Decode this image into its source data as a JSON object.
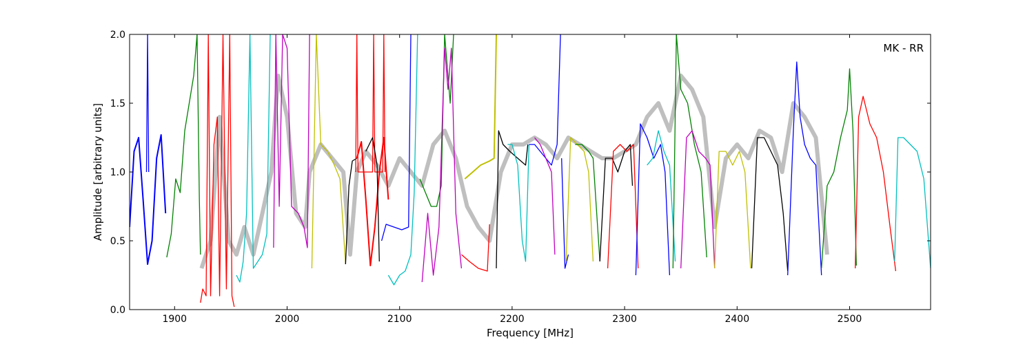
{
  "chart_data": {
    "type": "line",
    "title": "",
    "annotation": "MK - RR",
    "xlabel": "Frequency [MHz]",
    "ylabel": "Amplitude [arbitrary units]",
    "xlim": [
      1860,
      2572
    ],
    "ylim": [
      0.0,
      2.0
    ],
    "xticks": [
      1900,
      2000,
      2100,
      2200,
      2300,
      2400,
      2500
    ],
    "xtick_labels": [
      "1900",
      "2000",
      "2100",
      "2200",
      "2300",
      "2400",
      "2500"
    ],
    "yticks": [
      0.0,
      0.5,
      1.0,
      1.5,
      2.0
    ],
    "ytick_labels": [
      "0.0",
      "0.5",
      "1.0",
      "1.5",
      "2.0"
    ],
    "grid": false,
    "colors": {
      "background_model": "#bfbfbf",
      "blue": "#0000ff",
      "green": "#008000",
      "red": "#ff0000",
      "cyan": "#00bfbf",
      "magenta": "#bf00bf",
      "yellow": "#bfbf00",
      "black": "#000000"
    },
    "series": [
      {
        "color": "#bfbfbf",
        "width": 6,
        "x": [
          1924,
          1932,
          1940,
          1948,
          1955,
          1962,
          1970,
          1978,
          1986,
          1992,
          2000,
          2008,
          2016,
          2020,
          2030,
          2040,
          2050,
          2056,
          2062,
          2070,
          2080,
          2090,
          2100,
          2110,
          2120,
          2130,
          2140,
          2150,
          2160,
          2170,
          2180,
          2190,
          2200,
          2210,
          2220,
          2230,
          2240,
          2250,
          2260,
          2270,
          2280,
          2290,
          2300,
          2310,
          2320,
          2330,
          2340,
          2350,
          2360,
          2370,
          2380,
          2390,
          2400,
          2410,
          2420,
          2430,
          2440,
          2450,
          2460,
          2470,
          2480
        ],
        "y": [
          0.3,
          0.5,
          1.4,
          0.5,
          0.4,
          0.6,
          0.4,
          0.7,
          1.0,
          1.7,
          1.4,
          0.7,
          0.6,
          1.0,
          1.2,
          1.1,
          1.0,
          0.4,
          1.0,
          1.15,
          1.05,
          0.9,
          1.1,
          1.0,
          0.9,
          1.2,
          1.3,
          1.1,
          0.75,
          0.6,
          0.5,
          1.0,
          1.2,
          1.2,
          1.25,
          1.2,
          1.1,
          1.25,
          1.2,
          1.15,
          1.1,
          1.1,
          1.15,
          1.2,
          1.4,
          1.5,
          1.3,
          1.7,
          1.6,
          1.4,
          0.6,
          1.1,
          1.2,
          1.1,
          1.3,
          1.25,
          1.0,
          1.5,
          1.4,
          1.25,
          0.4
        ]
      },
      {
        "color": "#0000ff",
        "width": 2,
        "x": [
          1860,
          1864,
          1868,
          1872,
          1876,
          1880,
          1884,
          1888,
          1892
        ],
        "y": [
          0.6,
          1.15,
          1.25,
          0.8,
          0.33,
          0.5,
          1.1,
          1.27,
          0.7
        ]
      },
      {
        "color": "#0000ff",
        "width": 1.3,
        "x": [
          1875,
          1876,
          1877
        ],
        "y": [
          1.0,
          2.0,
          1.0
        ]
      },
      {
        "color": "#008000",
        "width": 1.3,
        "x": [
          1893,
          1897,
          1901,
          1905,
          1909,
          1913,
          1917,
          1920,
          1922,
          1923
        ],
        "y": [
          0.38,
          0.55,
          0.95,
          0.85,
          1.3,
          1.5,
          1.7,
          2.0,
          0.8,
          0.4
        ]
      },
      {
        "color": "#ff0000",
        "width": 1.3,
        "x": [
          1923,
          1925,
          1928,
          1930,
          1932,
          1935,
          1938,
          1940,
          1943,
          1946,
          1949,
          1951,
          1953
        ],
        "y": [
          0.05,
          0.15,
          0.1,
          2.0,
          0.1,
          1.2,
          1.4,
          0.1,
          2.0,
          0.15,
          2.0,
          0.1,
          0.02
        ]
      },
      {
        "color": "#00bfbf",
        "width": 1.3,
        "x": [
          1955,
          1958,
          1961,
          1964,
          1967,
          1970,
          1974,
          1978,
          1982,
          1985
        ],
        "y": [
          0.25,
          0.2,
          0.35,
          0.7,
          2.0,
          0.3,
          0.35,
          0.4,
          0.55,
          2.0
        ]
      },
      {
        "color": "#bf00bf",
        "width": 1.3,
        "x": [
          1988,
          1990,
          1993,
          1996,
          2000,
          2004,
          2010,
          2015,
          2018,
          2020
        ],
        "y": [
          0.45,
          2.0,
          0.75,
          2.0,
          1.9,
          0.75,
          0.7,
          0.6,
          0.45,
          2.0
        ]
      },
      {
        "color": "#bfbf00",
        "width": 1.3,
        "x": [
          2022,
          2026,
          2030,
          2036,
          2042,
          2047,
          2052
        ],
        "y": [
          0.3,
          2.0,
          1.2,
          1.15,
          1.05,
          0.95,
          0.33
        ]
      },
      {
        "color": "#000000",
        "width": 1.3,
        "x": [
          2052,
          2055,
          2058,
          2062
        ],
        "y": [
          0.33,
          0.9,
          1.08,
          1.1
        ]
      },
      {
        "color": "#ff0000",
        "width": 2,
        "x": [
          2062,
          2066,
          2070,
          2074,
          2078,
          2082,
          2086,
          2090
        ],
        "y": [
          1.1,
          1.22,
          0.8,
          0.32,
          0.6,
          1.0,
          1.25,
          0.8
        ]
      },
      {
        "color": "#ff0000",
        "width": 1.3,
        "x": [
          2061,
          2062,
          2063,
          2076,
          2077,
          2078,
          2085,
          2086,
          2087
        ],
        "y": [
          1.0,
          2.0,
          1.0,
          1.0,
          2.0,
          1.0,
          1.0,
          2.0,
          1.0
        ]
      },
      {
        "color": "#000000",
        "width": 1.3,
        "x": [
          2070,
          2076,
          2080,
          2082
        ],
        "y": [
          1.15,
          1.25,
          1.05,
          0.35
        ]
      },
      {
        "color": "#0000ff",
        "width": 1.3,
        "x": [
          2084,
          2088,
          2095,
          2102,
          2108,
          2110
        ],
        "y": [
          0.5,
          0.62,
          0.6,
          0.58,
          0.6,
          2.0
        ]
      },
      {
        "color": "#00bfbf",
        "width": 1.3,
        "x": [
          2090,
          2095,
          2100,
          2105,
          2110,
          2113,
          2116
        ],
        "y": [
          0.25,
          0.18,
          0.25,
          0.28,
          0.4,
          0.85,
          2.0
        ]
      },
      {
        "color": "#008000",
        "width": 1.3,
        "x": [
          2118,
          2123,
          2128,
          2133,
          2137,
          2140,
          2145,
          2148
        ],
        "y": [
          0.95,
          0.85,
          0.75,
          0.75,
          0.9,
          2.0,
          1.5,
          2.0
        ]
      },
      {
        "color": "#bf00bf",
        "width": 1.3,
        "x": [
          2120,
          2125,
          2130,
          2135,
          2140,
          2143,
          2146,
          2150,
          2155
        ],
        "y": [
          0.2,
          0.7,
          0.25,
          0.6,
          1.9,
          1.6,
          1.9,
          0.7,
          0.3
        ]
      },
      {
        "color": "#ff0000",
        "width": 1.3,
        "x": [
          2155,
          2162,
          2170,
          2178,
          2180
        ],
        "y": [
          0.4,
          0.35,
          0.3,
          0.28,
          0.62
        ]
      },
      {
        "color": "#bfbf00",
        "width": 2,
        "x": [
          2158,
          2165,
          2172,
          2180,
          2184,
          2186
        ],
        "y": [
          0.95,
          1.0,
          1.05,
          1.08,
          1.1,
          2.0
        ]
      },
      {
        "color": "#000000",
        "width": 1.3,
        "x": [
          2186,
          2188,
          2192,
          2198,
          2205,
          2212,
          2214
        ],
        "y": [
          0.3,
          1.3,
          1.2,
          1.15,
          1.1,
          1.05,
          1.2
        ]
      },
      {
        "color": "#00bfbf",
        "width": 1.3,
        "x": [
          2196,
          2200,
          2205,
          2209,
          2212,
          2215
        ],
        "y": [
          1.2,
          1.2,
          1.05,
          0.5,
          0.35,
          1.2
        ]
      },
      {
        "color": "#0000ff",
        "width": 1.3,
        "x": [
          2215,
          2220,
          2225,
          2230,
          2235,
          2240,
          2243
        ],
        "y": [
          1.2,
          1.2,
          1.15,
          1.1,
          1.05,
          1.2,
          2.0
        ]
      },
      {
        "color": "#bf00bf",
        "width": 1.3,
        "x": [
          2220,
          2225,
          2230,
          2235,
          2238
        ],
        "y": [
          1.25,
          1.2,
          1.1,
          1.0,
          0.4
        ]
      },
      {
        "color": "#0000ff",
        "width": 1.3,
        "x": [
          2244,
          2247,
          2250
        ],
        "y": [
          1.1,
          0.3,
          0.4
        ]
      },
      {
        "color": "#bfbf00",
        "width": 1.3,
        "x": [
          2248,
          2252,
          2258,
          2264,
          2268,
          2272
        ],
        "y": [
          0.35,
          1.25,
          1.2,
          1.15,
          1.0,
          0.35
        ]
      },
      {
        "color": "#008000",
        "width": 1.3,
        "x": [
          2256,
          2262,
          2268,
          2272,
          2278
        ],
        "y": [
          1.2,
          1.2,
          1.15,
          1.1,
          0.35
        ]
      },
      {
        "color": "#000000",
        "width": 1.3,
        "x": [
          2278,
          2283,
          2289,
          2294,
          2300,
          2305,
          2307
        ],
        "y": [
          0.35,
          1.1,
          1.1,
          1.0,
          1.15,
          1.2,
          0.9
        ]
      },
      {
        "color": "#ff0000",
        "width": 1.3,
        "x": [
          2285,
          2290,
          2296,
          2302,
          2308,
          2312
        ],
        "y": [
          0.3,
          1.15,
          1.2,
          1.15,
          1.2,
          0.3
        ]
      },
      {
        "color": "#0000ff",
        "width": 1.3,
        "x": [
          2310,
          2314,
          2320,
          2326,
          2332,
          2336,
          2340
        ],
        "y": [
          0.25,
          1.35,
          1.25,
          1.1,
          1.2,
          1.0,
          0.25
        ]
      },
      {
        "color": "#00bfbf",
        "width": 1.3,
        "x": [
          2320,
          2325,
          2330,
          2335,
          2340,
          2345
        ],
        "y": [
          1.05,
          1.1,
          1.3,
          1.15,
          1.05,
          0.35
        ]
      },
      {
        "color": "#008000",
        "width": 1.3,
        "x": [
          2343,
          2346,
          2350,
          2356,
          2362,
          2368,
          2373
        ],
        "y": [
          0.3,
          2.0,
          1.6,
          1.5,
          1.2,
          1.0,
          0.38
        ]
      },
      {
        "color": "#bf00bf",
        "width": 1.3,
        "x": [
          2350,
          2355,
          2360,
          2366,
          2372,
          2376,
          2380
        ],
        "y": [
          0.3,
          1.25,
          1.3,
          1.15,
          1.1,
          1.05,
          0.3
        ]
      },
      {
        "color": "#bfbf00",
        "width": 1.3,
        "x": [
          2380,
          2384,
          2390,
          2396,
          2402,
          2407,
          2412
        ],
        "y": [
          0.3,
          1.15,
          1.15,
          1.05,
          1.15,
          1.0,
          0.3
        ]
      },
      {
        "color": "#000000",
        "width": 1.3,
        "x": [
          2413,
          2418,
          2424,
          2430,
          2436,
          2441,
          2445
        ],
        "y": [
          0.3,
          1.25,
          1.25,
          1.15,
          1.05,
          0.7,
          0.28
        ]
      },
      {
        "color": "#0000ff",
        "width": 1.3,
        "x": [
          2445,
          2450,
          2453,
          2456,
          2460,
          2465,
          2470,
          2475
        ],
        "y": [
          0.25,
          1.3,
          1.8,
          1.4,
          1.2,
          1.1,
          1.05,
          0.25
        ]
      },
      {
        "color": "#008000",
        "width": 1.3,
        "x": [
          2475,
          2480,
          2486,
          2492,
          2498,
          2500,
          2503,
          2506
        ],
        "y": [
          0.3,
          0.9,
          1.0,
          1.25,
          1.45,
          1.75,
          1.3,
          0.32
        ]
      },
      {
        "color": "#ff0000",
        "width": 1.3,
        "x": [
          2505,
          2508,
          2512,
          2518,
          2524,
          2530,
          2536,
          2541
        ],
        "y": [
          0.3,
          1.4,
          1.55,
          1.35,
          1.25,
          1.0,
          0.6,
          0.28
        ]
      },
      {
        "color": "#00bfbf",
        "width": 1.3,
        "x": [
          2540,
          2543,
          2548,
          2554,
          2560,
          2566,
          2572
        ],
        "y": [
          0.35,
          1.25,
          1.25,
          1.2,
          1.15,
          0.95,
          0.3
        ]
      }
    ]
  }
}
